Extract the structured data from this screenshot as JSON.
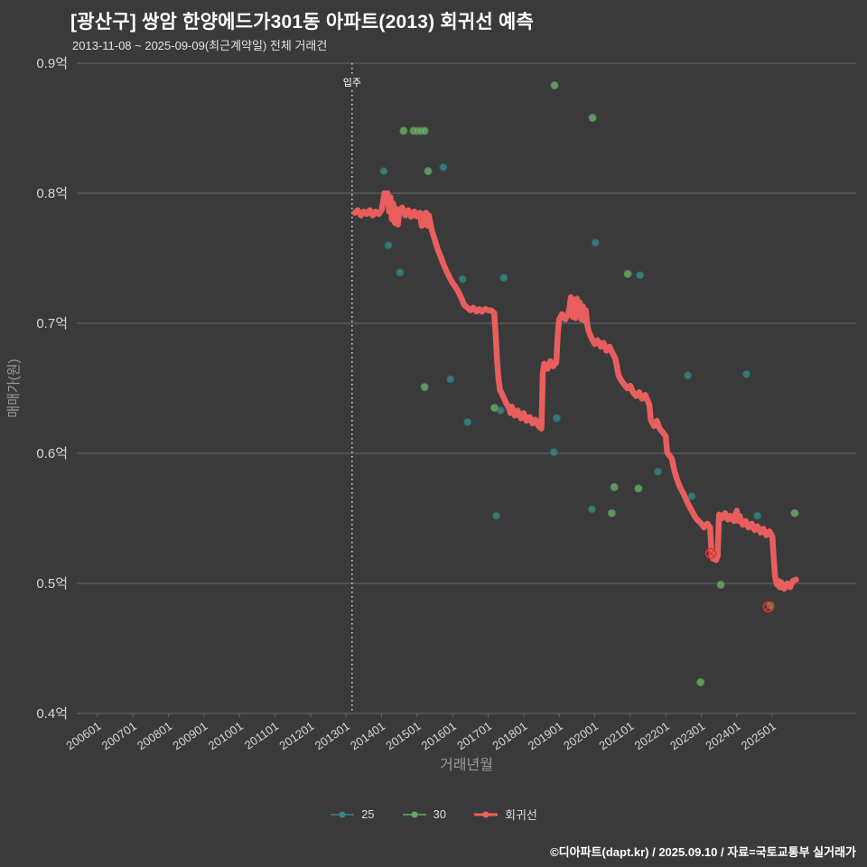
{
  "header": {
    "title": "[광산구] 쌍암 한양에드가301동 아파트(2013) 회귀선 예측",
    "subtitle": "2013-11-08 ~ 2025-09-09(최근계약일) 전체 거래건"
  },
  "footer": {
    "credit": "©디아파트(dapt.kr) / 2025.09.10 / 자료=국토교통부 실거래가"
  },
  "colors": {
    "background": "#3a3a3a",
    "grid": "#686868",
    "tick_text": "#d6d6d6",
    "axis_title": "#9a9a9a",
    "title_text": "#ffffff",
    "vline": "#f0f0f0",
    "outlier": "#e03232"
  },
  "chart_data": {
    "type": "scatter",
    "title": "[광산구] 쌍암 한양에드가301동 아파트(2013) 회귀선 예측",
    "subtitle": "2013-11-08 ~ 2025-09-09(최근계약일) 전체 거래건",
    "xlabel": "거래년월",
    "ylabel": "매매가(원)",
    "unit": "억원",
    "grid": "horizontal-only",
    "legend_position": "bottom-center",
    "xlim": [
      2005.42,
      2027.36
    ],
    "ylim": [
      0.4,
      0.9
    ],
    "y_ticks": [
      {
        "value": 0.9,
        "label": "0.9억"
      },
      {
        "value": 0.8,
        "label": "0.8억"
      },
      {
        "value": 0.7,
        "label": "0.7억"
      },
      {
        "value": 0.6,
        "label": "0.6억"
      },
      {
        "value": 0.5,
        "label": "0.5억"
      },
      {
        "value": 0.4,
        "label": "0.4억"
      }
    ],
    "x_ticks": [
      {
        "value": 2006,
        "label": "200601"
      },
      {
        "value": 2007,
        "label": "200701"
      },
      {
        "value": 2008,
        "label": "200801"
      },
      {
        "value": 2009,
        "label": "200901"
      },
      {
        "value": 2010,
        "label": "201001"
      },
      {
        "value": 2011,
        "label": "201101"
      },
      {
        "value": 2012,
        "label": "201201"
      },
      {
        "value": 2013,
        "label": "201301"
      },
      {
        "value": 2014,
        "label": "201401"
      },
      {
        "value": 2015,
        "label": "201501"
      },
      {
        "value": 2016,
        "label": "201601"
      },
      {
        "value": 2017,
        "label": "201701"
      },
      {
        "value": 2018,
        "label": "201801"
      },
      {
        "value": 2019,
        "label": "201901"
      },
      {
        "value": 2020,
        "label": "202001"
      },
      {
        "value": 2021,
        "label": "202101"
      },
      {
        "value": 2022,
        "label": "202201"
      },
      {
        "value": 2023,
        "label": "202301"
      },
      {
        "value": 2024,
        "label": "202401"
      },
      {
        "value": 2025,
        "label": "202501"
      }
    ],
    "vline": {
      "x": 2013.17,
      "label": "입주"
    },
    "series": [
      {
        "name": "25",
        "type": "scatter",
        "color": "#3d8383",
        "stroke": "#2b6363",
        "points": [
          [
            2014.06,
            0.817
          ],
          [
            2014.19,
            0.76
          ],
          [
            2014.52,
            0.739
          ],
          [
            2015.74,
            0.82
          ],
          [
            2015.94,
            0.657
          ],
          [
            2016.28,
            0.734
          ],
          [
            2016.42,
            0.624
          ],
          [
            2017.23,
            0.552
          ],
          [
            2017.35,
            0.633
          ],
          [
            2017.44,
            0.735
          ],
          [
            2018.85,
            0.601
          ],
          [
            2018.93,
            0.627
          ],
          [
            2019.92,
            0.557
          ],
          [
            2020.02,
            0.762
          ],
          [
            2021.28,
            0.737
          ],
          [
            2021.78,
            0.586
          ],
          [
            2022.62,
            0.66
          ],
          [
            2022.73,
            0.567
          ],
          [
            2024.27,
            0.661
          ],
          [
            2024.58,
            0.552
          ]
        ]
      },
      {
        "name": "30",
        "type": "scatter",
        "color": "#68a868",
        "stroke": "#4e8a4e",
        "points": [
          [
            2014.62,
            0.848
          ],
          [
            2014.9,
            0.848
          ],
          [
            2015.0,
            0.848
          ],
          [
            2015.1,
            0.848
          ],
          [
            2015.21,
            0.848
          ],
          [
            2015.31,
            0.817
          ],
          [
            2015.21,
            0.651
          ],
          [
            2017.18,
            0.635
          ],
          [
            2018.87,
            0.883
          ],
          [
            2019.94,
            0.858
          ],
          [
            2020.48,
            0.554
          ],
          [
            2020.55,
            0.574
          ],
          [
            2020.93,
            0.738
          ],
          [
            2021.23,
            0.573
          ],
          [
            2022.98,
            0.424
          ],
          [
            2023.55,
            0.499
          ],
          [
            2024.95,
            0.483
          ],
          [
            2025.63,
            0.554
          ]
        ]
      },
      {
        "name": "회귀선",
        "type": "line",
        "color": "#f15f5f",
        "points": [
          [
            2013.25,
            0.785
          ],
          [
            2013.33,
            0.787
          ],
          [
            2013.42,
            0.783
          ],
          [
            2013.5,
            0.786
          ],
          [
            2013.58,
            0.784
          ],
          [
            2013.67,
            0.787
          ],
          [
            2013.75,
            0.783
          ],
          [
            2013.83,
            0.786
          ],
          [
            2013.92,
            0.784
          ],
          [
            2014.0,
            0.787
          ],
          [
            2014.04,
            0.793
          ],
          [
            2014.08,
            0.8
          ],
          [
            2014.13,
            0.793
          ],
          [
            2014.17,
            0.8
          ],
          [
            2014.21,
            0.786
          ],
          [
            2014.25,
            0.797
          ],
          [
            2014.29,
            0.78
          ],
          [
            2014.33,
            0.792
          ],
          [
            2014.38,
            0.777
          ],
          [
            2014.42,
            0.788
          ],
          [
            2014.46,
            0.776
          ],
          [
            2014.5,
            0.786
          ],
          [
            2014.58,
            0.789
          ],
          [
            2014.67,
            0.783
          ],
          [
            2014.75,
            0.787
          ],
          [
            2014.83,
            0.782
          ],
          [
            2014.92,
            0.786
          ],
          [
            2015.0,
            0.782
          ],
          [
            2015.08,
            0.785
          ],
          [
            2015.13,
            0.775
          ],
          [
            2015.17,
            0.784
          ],
          [
            2015.21,
            0.778
          ],
          [
            2015.25,
            0.785
          ],
          [
            2015.29,
            0.775
          ],
          [
            2015.33,
            0.783
          ],
          [
            2015.42,
            0.771
          ],
          [
            2015.5,
            0.764
          ],
          [
            2015.58,
            0.757
          ],
          [
            2015.67,
            0.751
          ],
          [
            2015.75,
            0.745
          ],
          [
            2015.83,
            0.74
          ],
          [
            2015.92,
            0.735
          ],
          [
            2016.0,
            0.731
          ],
          [
            2016.08,
            0.728
          ],
          [
            2016.17,
            0.724
          ],
          [
            2016.25,
            0.719
          ],
          [
            2016.33,
            0.714
          ],
          [
            2016.42,
            0.712
          ],
          [
            2016.5,
            0.71
          ],
          [
            2016.58,
            0.712
          ],
          [
            2016.67,
            0.709
          ],
          [
            2016.75,
            0.711
          ],
          [
            2016.83,
            0.709
          ],
          [
            2016.92,
            0.711
          ],
          [
            2017.0,
            0.71
          ],
          [
            2017.08,
            0.71
          ],
          [
            2017.17,
            0.708
          ],
          [
            2017.21,
            0.692
          ],
          [
            2017.25,
            0.672
          ],
          [
            2017.29,
            0.658
          ],
          [
            2017.33,
            0.649
          ],
          [
            2017.42,
            0.644
          ],
          [
            2017.5,
            0.639
          ],
          [
            2017.58,
            0.635
          ],
          [
            2017.63,
            0.631
          ],
          [
            2017.67,
            0.636
          ],
          [
            2017.75,
            0.629
          ],
          [
            2017.83,
            0.633
          ],
          [
            2017.92,
            0.627
          ],
          [
            2018.0,
            0.631
          ],
          [
            2018.08,
            0.625
          ],
          [
            2018.17,
            0.628
          ],
          [
            2018.25,
            0.623
          ],
          [
            2018.33,
            0.626
          ],
          [
            2018.42,
            0.621
          ],
          [
            2018.5,
            0.619
          ],
          [
            2018.54,
            0.662
          ],
          [
            2018.58,
            0.669
          ],
          [
            2018.67,
            0.665
          ],
          [
            2018.75,
            0.671
          ],
          [
            2018.83,
            0.667
          ],
          [
            2018.92,
            0.67
          ],
          [
            2018.96,
            0.692
          ],
          [
            2019.0,
            0.703
          ],
          [
            2019.08,
            0.707
          ],
          [
            2019.17,
            0.703
          ],
          [
            2019.25,
            0.707
          ],
          [
            2019.29,
            0.712
          ],
          [
            2019.33,
            0.72
          ],
          [
            2019.38,
            0.705
          ],
          [
            2019.42,
            0.718
          ],
          [
            2019.46,
            0.704
          ],
          [
            2019.5,
            0.719
          ],
          [
            2019.54,
            0.707
          ],
          [
            2019.58,
            0.716
          ],
          [
            2019.63,
            0.703
          ],
          [
            2019.67,
            0.713
          ],
          [
            2019.71,
            0.702
          ],
          [
            2019.75,
            0.71
          ],
          [
            2019.79,
            0.699
          ],
          [
            2019.83,
            0.694
          ],
          [
            2019.92,
            0.688
          ],
          [
            2020.0,
            0.684
          ],
          [
            2020.08,
            0.687
          ],
          [
            2020.17,
            0.682
          ],
          [
            2020.25,
            0.685
          ],
          [
            2020.33,
            0.679
          ],
          [
            2020.42,
            0.682
          ],
          [
            2020.5,
            0.677
          ],
          [
            2020.58,
            0.673
          ],
          [
            2020.63,
            0.666
          ],
          [
            2020.67,
            0.66
          ],
          [
            2020.75,
            0.656
          ],
          [
            2020.83,
            0.653
          ],
          [
            2020.92,
            0.65
          ],
          [
            2021.0,
            0.652
          ],
          [
            2021.08,
            0.647
          ],
          [
            2021.17,
            0.644
          ],
          [
            2021.25,
            0.647
          ],
          [
            2021.33,
            0.642
          ],
          [
            2021.42,
            0.645
          ],
          [
            2021.5,
            0.64
          ],
          [
            2021.54,
            0.637
          ],
          [
            2021.58,
            0.626
          ],
          [
            2021.67,
            0.621
          ],
          [
            2021.75,
            0.625
          ],
          [
            2021.83,
            0.619
          ],
          [
            2021.92,
            0.616
          ],
          [
            2022.0,
            0.613
          ],
          [
            2022.04,
            0.601
          ],
          [
            2022.08,
            0.599
          ],
          [
            2022.17,
            0.596
          ],
          [
            2022.25,
            0.586
          ],
          [
            2022.33,
            0.579
          ],
          [
            2022.42,
            0.573
          ],
          [
            2022.5,
            0.569
          ],
          [
            2022.58,
            0.564
          ],
          [
            2022.67,
            0.559
          ],
          [
            2022.75,
            0.555
          ],
          [
            2022.83,
            0.551
          ],
          [
            2022.92,
            0.548
          ],
          [
            2023.0,
            0.546
          ],
          [
            2023.08,
            0.543
          ],
          [
            2023.17,
            0.546
          ],
          [
            2023.25,
            0.543
          ],
          [
            2023.29,
            0.523
          ],
          [
            2023.33,
            0.519
          ],
          [
            2023.38,
            0.523
          ],
          [
            2023.42,
            0.518
          ],
          [
            2023.46,
            0.521
          ],
          [
            2023.5,
            0.553
          ],
          [
            2023.58,
            0.55
          ],
          [
            2023.67,
            0.554
          ],
          [
            2023.75,
            0.549
          ],
          [
            2023.83,
            0.552
          ],
          [
            2023.92,
            0.548
          ],
          [
            2024.0,
            0.556
          ],
          [
            2024.04,
            0.548
          ],
          [
            2024.08,
            0.552
          ],
          [
            2024.17,
            0.545
          ],
          [
            2024.25,
            0.548
          ],
          [
            2024.33,
            0.543
          ],
          [
            2024.42,
            0.546
          ],
          [
            2024.5,
            0.541
          ],
          [
            2024.58,
            0.544
          ],
          [
            2024.67,
            0.539
          ],
          [
            2024.75,
            0.542
          ],
          [
            2024.83,
            0.537
          ],
          [
            2024.92,
            0.54
          ],
          [
            2025.0,
            0.536
          ],
          [
            2025.04,
            0.519
          ],
          [
            2025.08,
            0.505
          ],
          [
            2025.13,
            0.499
          ],
          [
            2025.17,
            0.502
          ],
          [
            2025.21,
            0.497
          ],
          [
            2025.25,
            0.501
          ],
          [
            2025.33,
            0.496
          ],
          [
            2025.42,
            0.5
          ],
          [
            2025.5,
            0.497
          ],
          [
            2025.58,
            0.502
          ],
          [
            2025.67,
            0.503
          ]
        ]
      }
    ],
    "outlier_markers": [
      [
        2023.27,
        0.523
      ],
      [
        2024.89,
        0.482
      ]
    ]
  }
}
